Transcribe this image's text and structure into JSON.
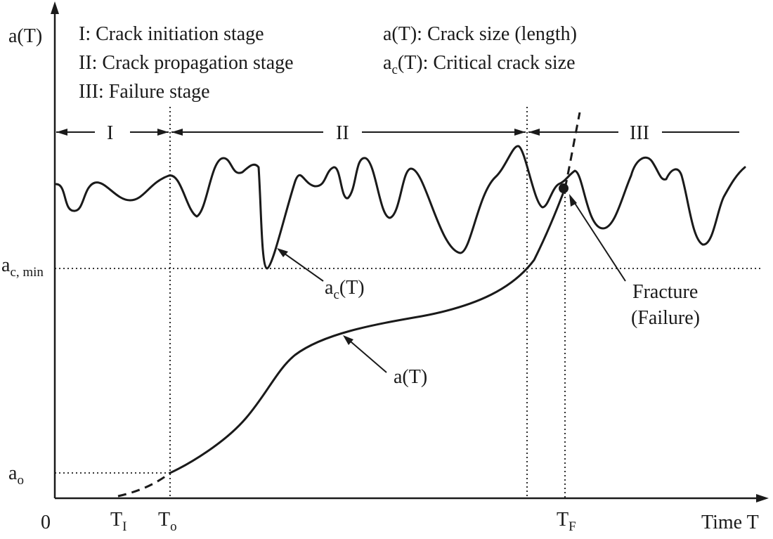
{
  "axes": {
    "y_label": "a(T)",
    "x_label": "Time T",
    "origin": "0"
  },
  "legend": {
    "stage_1": "I: Crack initiation stage",
    "stage_2": "II: Crack propagation stage",
    "stage_3": "III: Failure stage",
    "crack_size_main": "a(T): Crack size (length)",
    "critical_a": "a",
    "critical_sub": "c",
    "critical_rest": "(T): Critical crack size"
  },
  "stages": {
    "i": "I",
    "ii": "II",
    "iii": "III"
  },
  "y_ticks": {
    "ac_min_a": "a",
    "ac_min_sub": "c, min",
    "ao_a": "a",
    "ao_sub": "o"
  },
  "x_ticks": {
    "ti_t": "T",
    "ti_sub": "I",
    "to_t": "T",
    "to_sub": "o",
    "tf_t": "T",
    "tf_sub": "F"
  },
  "annotations": {
    "ac_a": "a",
    "ac_sub": "c",
    "ac_rest": "(T)",
    "at": "a(T)",
    "fracture_line1": "Fracture",
    "fracture_line2": "(Failure)"
  }
}
